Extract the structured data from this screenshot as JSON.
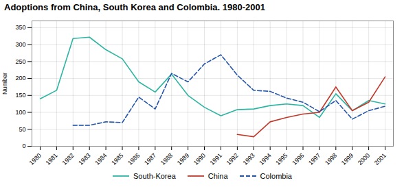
{
  "chart_data": {
    "type": "line",
    "title": "Adoptions from China, South Korea and Colombia. 1980-2001",
    "ylabel": "Number",
    "x": [
      1980,
      1981,
      1982,
      1983,
      1984,
      1985,
      1986,
      1987,
      1988,
      1989,
      1990,
      1991,
      1992,
      1993,
      1994,
      1995,
      1996,
      1997,
      1998,
      1999,
      2000,
      2001
    ],
    "series": [
      {
        "name": "South-Korea",
        "color": "#2db5a3",
        "line_style": "solid",
        "values": [
          140,
          165,
          318,
          322,
          285,
          258,
          190,
          160,
          213,
          150,
          115,
          90,
          108,
          110,
          120,
          125,
          120,
          85,
          155,
          105,
          135,
          125
        ]
      },
      {
        "name": "China",
        "color": "#c0392b",
        "line_style": "solid",
        "values": [
          null,
          null,
          null,
          null,
          null,
          null,
          null,
          null,
          null,
          null,
          null,
          null,
          35,
          28,
          72,
          85,
          95,
          100,
          175,
          105,
          130,
          205
        ]
      },
      {
        "name": "Colombia",
        "color": "#2255aa",
        "line_style": "dashed",
        "values": [
          null,
          null,
          62,
          62,
          72,
          70,
          145,
          110,
          215,
          190,
          243,
          270,
          210,
          165,
          162,
          142,
          130,
          102,
          135,
          80,
          105,
          118
        ]
      }
    ],
    "xlim": [
      1979.5,
      2001.5
    ],
    "xticks": [
      1980,
      1981,
      1982,
      1983,
      1984,
      1985,
      1986,
      1987,
      1988,
      1989,
      1990,
      1991,
      1992,
      1993,
      1994,
      1995,
      1996,
      1997,
      1998,
      1999,
      2000,
      2001
    ],
    "ylim": [
      0,
      370
    ],
    "yticks": [
      0,
      50,
      100,
      150,
      200,
      250,
      300,
      350
    ],
    "grid": true,
    "legend": "bottom"
  }
}
